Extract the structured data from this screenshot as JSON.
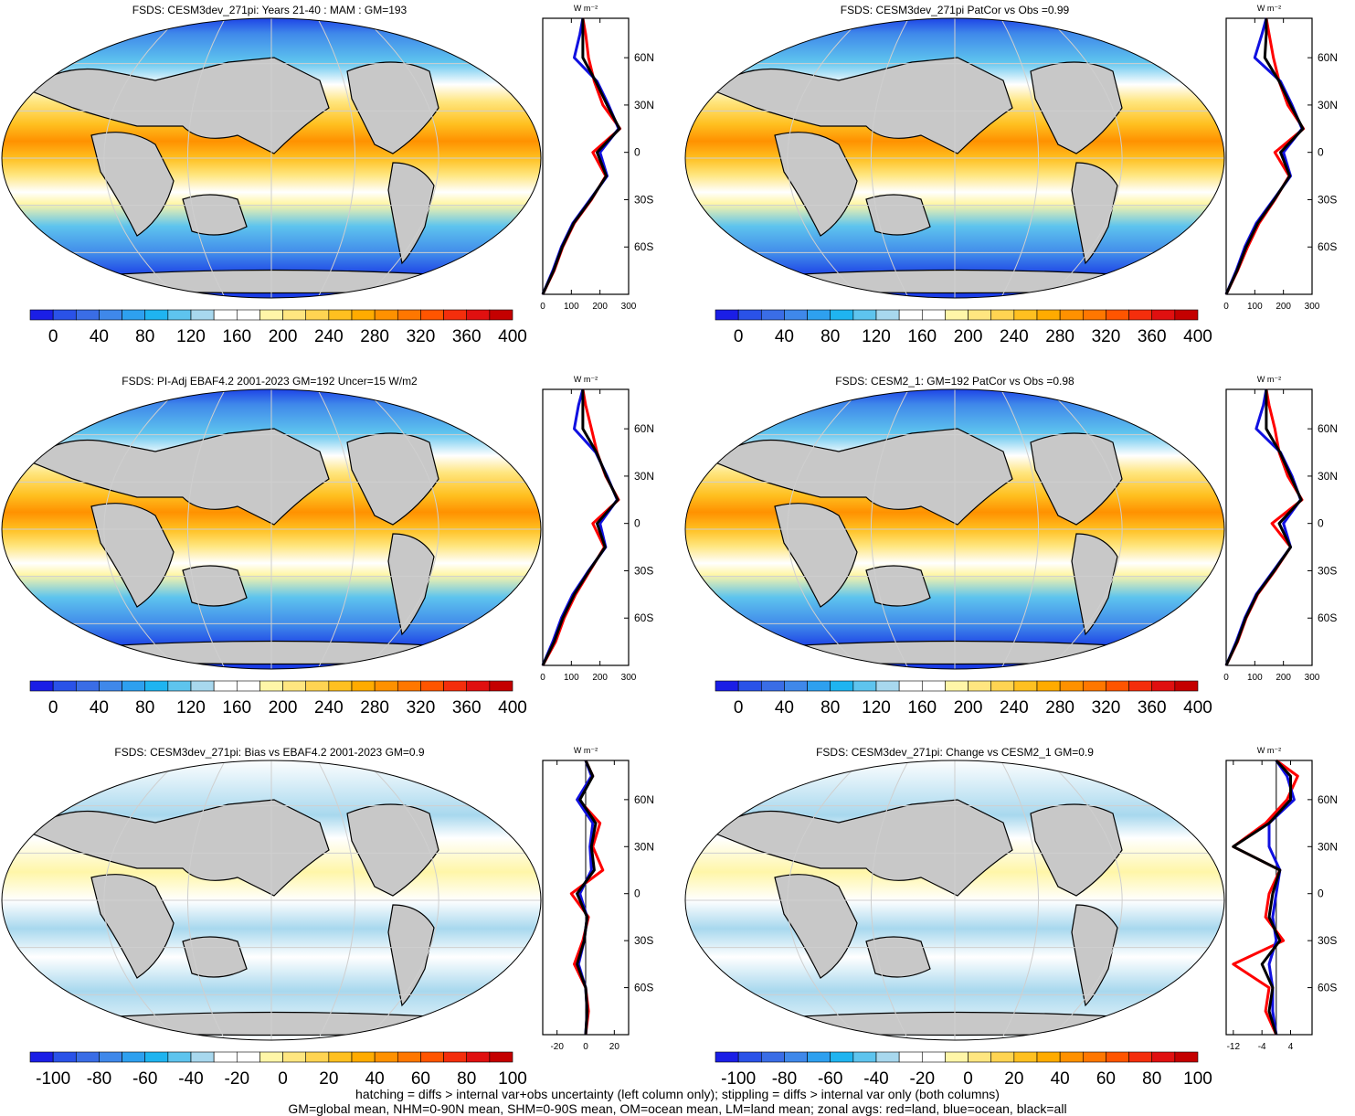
{
  "panels": [
    {
      "title": "FSDS: CESM3dev_271pi: Years 21-40 : MAM : GM=193",
      "kind": "abs"
    },
    {
      "title": "FSDS: CESM3dev_271pi PatCor vs Obs =0.99",
      "kind": "abs"
    },
    {
      "title": "FSDS: PI-Adj EBAF4.2 2001-2023 GM=192 Uncer=15 W/m2",
      "kind": "abs"
    },
    {
      "title": "FSDS: CESM2_1: GM=192 PatCor vs Obs =0.98",
      "kind": "abs"
    },
    {
      "title": "FSDS: CESM3dev_271pi: Bias vs EBAF4.2 2001-2023 GM=0.9",
      "kind": "diff"
    },
    {
      "title": "FSDS: CESM3dev_271pi: Change vs CESM2_1 GM=0.9",
      "kind": "diff"
    }
  ],
  "colorbars": {
    "abs": {
      "labels": [
        "0",
        "40",
        "80",
        "120",
        "160",
        "200",
        "240",
        "280",
        "320",
        "360",
        "400"
      ],
      "colors": [
        "#1a1ee6",
        "#2a52e8",
        "#3a6de6",
        "#3f88ea",
        "#2ea0ef",
        "#1fb4f0",
        "#5ec4ee",
        "#a8d8ee",
        "#ffffff",
        "#ffffff",
        "#fff6a8",
        "#ffe680",
        "#ffd452",
        "#ffc020",
        "#ffab00",
        "#ff9100",
        "#ff7700",
        "#ff5500",
        "#f42e0c",
        "#e01010",
        "#c40000"
      ]
    },
    "diff": {
      "labels": [
        "-100",
        "-80",
        "-60",
        "-40",
        "-20",
        "0",
        "20",
        "40",
        "60",
        "80",
        "100"
      ],
      "colors": [
        "#1a1ee6",
        "#2a52e8",
        "#3a6de6",
        "#3f88ea",
        "#2ea0ef",
        "#1fb4f0",
        "#5ec4ee",
        "#a8d8ee",
        "#ffffff",
        "#ffffff",
        "#fff6a8",
        "#ffe680",
        "#ffd452",
        "#ffc020",
        "#ffab00",
        "#ff9100",
        "#ff7700",
        "#ff5500",
        "#f42e0c",
        "#e01010",
        "#c40000"
      ]
    }
  },
  "zonal_axes": {
    "unit": "W m⁻²",
    "lat_ticks": [
      "60N",
      "30N",
      "0",
      "30S",
      "60S"
    ],
    "abs_x_ticks": [
      "0",
      "100",
      "200",
      "300"
    ],
    "bias_x_ticks": [
      "-20",
      "0",
      "20"
    ],
    "change_x_ticks": [
      "-12",
      "-4",
      "4"
    ],
    "line_colors": {
      "land": "#ff0000",
      "ocean": "#1010e0",
      "all": "#000000"
    }
  },
  "chart_data": [
    {
      "type": "line",
      "title": "FSDS: CESM3dev_271pi: Years 21-40 : MAM : GM=193",
      "xlim": [
        0,
        300
      ],
      "lat": [
        -90,
        -75,
        -60,
        -45,
        -30,
        -15,
        0,
        15,
        30,
        45,
        60,
        75,
        85
      ],
      "series": [
        {
          "name": "land",
          "values": [
            0,
            40,
            70,
            110,
            170,
            220,
            175,
            270,
            210,
            180,
            160,
            150,
            140
          ]
        },
        {
          "name": "ocean",
          "values": [
            0,
            35,
            65,
            105,
            165,
            225,
            200,
            265,
            230,
            190,
            110,
            130,
            140
          ]
        },
        {
          "name": "all",
          "values": [
            0,
            38,
            68,
            108,
            168,
            222,
            190,
            268,
            225,
            185,
            140,
            140,
            140
          ]
        }
      ]
    },
    {
      "type": "line",
      "title": "FSDS: CESM3dev_271pi PatCor vs Obs =0.99",
      "xlim": [
        0,
        300
      ],
      "lat": [
        -90,
        -75,
        -60,
        -45,
        -30,
        -15,
        0,
        15,
        30,
        45,
        60,
        75,
        85
      ],
      "series": [
        {
          "name": "land",
          "values": [
            0,
            40,
            75,
            115,
            170,
            220,
            170,
            270,
            215,
            185,
            165,
            150,
            140
          ]
        },
        {
          "name": "ocean",
          "values": [
            0,
            35,
            65,
            105,
            165,
            225,
            200,
            265,
            230,
            190,
            100,
            125,
            140
          ]
        },
        {
          "name": "all",
          "values": [
            0,
            38,
            70,
            110,
            168,
            222,
            190,
            268,
            225,
            185,
            135,
            140,
            140
          ]
        }
      ]
    },
    {
      "type": "line",
      "title": "FSDS: PI-Adj EBAF4.2 2001-2023 GM=192 Uncer=15 W/m2",
      "xlim": [
        0,
        300
      ],
      "lat": [
        -90,
        -75,
        -60,
        -45,
        -30,
        -15,
        0,
        15,
        30,
        45,
        60,
        75,
        85
      ],
      "series": [
        {
          "name": "land",
          "values": [
            0,
            45,
            75,
            115,
            165,
            215,
            175,
            265,
            220,
            190,
            170,
            150,
            140
          ]
        },
        {
          "name": "ocean",
          "values": [
            0,
            35,
            65,
            105,
            160,
            220,
            200,
            260,
            225,
            185,
            110,
            125,
            140
          ]
        },
        {
          "name": "all",
          "values": [
            0,
            40,
            70,
            110,
            162,
            218,
            190,
            262,
            222,
            188,
            140,
            140,
            140
          ]
        }
      ]
    },
    {
      "type": "line",
      "title": "FSDS: CESM2_1: GM=192 PatCor vs Obs =0.98",
      "xlim": [
        0,
        300
      ],
      "lat": [
        -90,
        -75,
        -60,
        -45,
        -30,
        -15,
        0,
        15,
        30,
        45,
        60,
        75,
        85
      ],
      "series": [
        {
          "name": "land",
          "values": [
            0,
            40,
            70,
            110,
            170,
            225,
            160,
            265,
            215,
            185,
            170,
            150,
            140
          ]
        },
        {
          "name": "ocean",
          "values": [
            0,
            35,
            65,
            105,
            165,
            225,
            200,
            260,
            230,
            190,
            105,
            130,
            140
          ]
        },
        {
          "name": "all",
          "values": [
            0,
            38,
            68,
            108,
            168,
            225,
            185,
            262,
            225,
            188,
            140,
            140,
            140
          ]
        }
      ]
    },
    {
      "type": "line",
      "title": "FSDS: CESM3dev_271pi: Bias vs EBAF4.2 2001-2023 GM=0.9",
      "xlim": [
        -30,
        30
      ],
      "lat": [
        -90,
        -75,
        -60,
        -45,
        -30,
        -15,
        0,
        15,
        30,
        45,
        60,
        75,
        85
      ],
      "series": [
        {
          "name": "land",
          "values": [
            0,
            2,
            0,
            -8,
            -2,
            2,
            -10,
            12,
            5,
            10,
            -5,
            5,
            0
          ]
        },
        {
          "name": "ocean",
          "values": [
            0,
            1,
            0,
            -5,
            -1,
            1,
            -4,
            4,
            3,
            5,
            -6,
            4,
            0
          ]
        },
        {
          "name": "all",
          "values": [
            0,
            1,
            0,
            -6,
            -1,
            1,
            -6,
            6,
            4,
            7,
            -4,
            5,
            0
          ]
        }
      ]
    },
    {
      "type": "line",
      "title": "FSDS: CESM3dev_271pi: Change vs CESM2_1 GM=0.9",
      "xlim": [
        -14,
        10
      ],
      "lat": [
        -90,
        -75,
        -60,
        -45,
        -30,
        -15,
        0,
        15,
        30,
        45,
        60,
        75,
        85
      ],
      "series": [
        {
          "name": "land",
          "values": [
            0,
            -3,
            -2,
            -12,
            2,
            -3,
            -2,
            1,
            -12,
            -3,
            3,
            6,
            0
          ]
        },
        {
          "name": "ocean",
          "values": [
            0,
            -1,
            -1,
            -2,
            0,
            -1,
            0,
            1,
            -2,
            -2,
            5,
            3,
            0
          ]
        },
        {
          "name": "all",
          "values": [
            0,
            -2,
            -1,
            -4,
            1,
            -2,
            -1,
            1,
            -12,
            -2,
            4,
            4,
            0
          ]
        }
      ]
    }
  ],
  "footer": {
    "line1": "hatching = diffs > internal var+obs uncertainty (left column only); stippling = diffs > internal var only (both columns)",
    "line2": "GM=global mean, NHM=0-90N mean, SHM=0-90S mean, OM=ocean mean, LM=land mean; zonal avgs: red=land, blue=ocean, black=all"
  }
}
